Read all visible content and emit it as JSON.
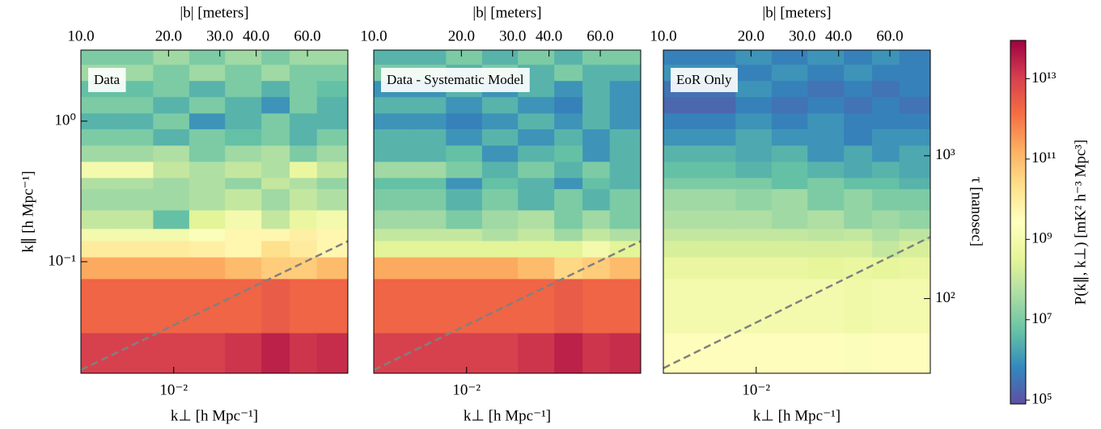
{
  "chart_data": [
    {
      "type": "heatmap",
      "annotation": "Data",
      "top_xlabel": "|b| [meters]",
      "xlabel": "k⊥ [h Mpc⁻¹]",
      "ylabel": "k∥ [h Mpc⁻¹]",
      "log_x": true,
      "log_y": true,
      "xlim": [
        0.0048,
        0.0396
      ],
      "ylim": [
        0.0161,
        3.2
      ],
      "xticks": [
        {
          "value": 0.01,
          "label": "10⁻²"
        }
      ],
      "yticks": [
        {
          "value": 1,
          "label": "10⁰"
        },
        {
          "value": 0.1,
          "label": "10⁻¹"
        }
      ],
      "top_xlim": [
        10,
        82.6
      ],
      "top_xticks": [
        {
          "value": 10,
          "label": "10.0"
        },
        {
          "value": 20,
          "label": "20.0"
        },
        {
          "value": 30,
          "label": "30.0"
        },
        {
          "value": 40,
          "label": "40.0"
        },
        {
          "value": 60,
          "label": "60.0"
        }
      ],
      "x_edges": [
        0.0048,
        0.0064,
        0.0085,
        0.0113,
        0.015,
        0.02,
        0.025,
        0.031,
        0.0396
      ],
      "y_edges": [
        0.0161,
        0.0312,
        0.0757,
        0.108,
        0.141,
        0.172,
        0.233,
        0.33,
        0.396,
        0.516,
        0.673,
        0.88,
        1.14,
        1.49,
        1.94,
        2.53,
        3.2
      ],
      "values": [
        [
          10000000000000.0,
          10000000000000.0,
          10000000000000.0,
          10000000000000.0,
          15000000000000.0,
          30000000000000.0,
          15000000000000.0,
          20000000000000.0
        ],
        [
          2000000000000.0,
          2000000000000.0,
          2000000000000.0,
          2000000000000.0,
          2000000000000.0,
          3000000000000.0,
          2000000000000.0,
          2000000000000.0
        ],
        [
          200000000000.0,
          200000000000.0,
          200000000000.0,
          200000000000.0,
          100000000000.0,
          50000000000.0,
          50000000000.0,
          100000000000.0
        ],
        [
          10000000000.0,
          10000000000.0,
          10000000000.0,
          8000000000.0,
          5000000000.0,
          20000000000.0,
          10000000000.0,
          5000000000.0
        ],
        [
          1000000000.0,
          1000000000.0,
          1000000000.0,
          2000000000.0,
          5000000000.0,
          5000000000.0,
          8000000000.0,
          5000000000.0
        ],
        [
          100000000.0,
          100000000.0,
          5000000.0,
          300000000.0,
          1000000000.0,
          100000000.0,
          500000000.0,
          1000000000.0
        ],
        [
          30000000.0,
          30000000.0,
          30000000.0,
          50000000.0,
          100000000.0,
          30000000.0,
          100000000.0,
          50000000.0
        ],
        [
          50000000.0,
          50000000.0,
          30000000.0,
          50000000.0,
          20000000.0,
          100000000.0,
          50000000.0,
          20000000.0
        ],
        [
          1000000000.0,
          1000000000.0,
          100000000.0,
          50000000.0,
          100000000.0,
          50000000.0,
          500000000.0,
          100000000.0
        ],
        [
          30000000.0,
          30000000.0,
          50000000.0,
          10000000.0,
          30000000.0,
          50000000.0,
          10000000.0,
          30000000.0
        ],
        [
          10000000.0,
          10000000.0,
          3000000.0,
          10000000.0,
          5000000.0,
          10000000.0,
          3000000.0,
          10000000.0
        ],
        [
          3000000.0,
          3000000.0,
          10000000.0,
          1000000.0,
          3000000.0,
          10000000.0,
          3000000.0,
          3000000.0
        ],
        [
          10000000.0,
          10000000.0,
          3000000.0,
          10000000.0,
          3000000.0,
          1000000.0,
          10000000.0,
          3000000.0
        ],
        [
          5000000.0,
          5000000.0,
          10000000.0,
          3000000.0,
          10000000.0,
          3000000.0,
          10000000.0,
          5000000.0
        ],
        [
          30000000.0,
          30000000.0,
          10000000.0,
          30000000.0,
          10000000.0,
          30000000.0,
          10000000.0,
          10000000.0
        ],
        [
          10000000.0,
          10000000.0,
          30000000.0,
          10000000.0,
          30000000.0,
          10000000.0,
          30000000.0,
          30000000.0
        ]
      ],
      "horizon": {
        "x": [
          0.0048,
          0.0396
        ],
        "y": [
          0.017,
          0.14
        ],
        "color": "#808080"
      }
    },
    {
      "type": "heatmap",
      "annotation": "Data - Systematic Model",
      "top_xlabel": "|b| [meters]",
      "xlabel": "k⊥ [h Mpc⁻¹]",
      "log_x": true,
      "log_y": true,
      "xlim": [
        0.0048,
        0.0396
      ],
      "ylim": [
        0.0161,
        3.2
      ],
      "xticks": [
        {
          "value": 0.01,
          "label": "10⁻²"
        }
      ],
      "top_xlim": [
        10,
        82.6
      ],
      "top_xticks": [
        {
          "value": 10,
          "label": "10.0"
        },
        {
          "value": 20,
          "label": "20.0"
        },
        {
          "value": 30,
          "label": "30.0"
        },
        {
          "value": 40,
          "label": "40.0"
        },
        {
          "value": 60,
          "label": "60.0"
        }
      ],
      "x_edges": [
        0.0048,
        0.0064,
        0.0085,
        0.0113,
        0.015,
        0.02,
        0.025,
        0.031,
        0.0396
      ],
      "y_edges": [
        0.0161,
        0.0312,
        0.0757,
        0.108,
        0.141,
        0.172,
        0.233,
        0.33,
        0.396,
        0.516,
        0.673,
        0.88,
        1.14,
        1.49,
        1.94,
        2.53,
        3.2
      ],
      "values": [
        [
          10000000000000.0,
          10000000000000.0,
          10000000000000.0,
          10000000000000.0,
          15000000000000.0,
          30000000000000.0,
          15000000000000.0,
          20000000000000.0
        ],
        [
          2000000000000.0,
          2000000000000.0,
          2000000000000.0,
          2000000000000.0,
          2000000000000.0,
          3000000000000.0,
          2000000000000.0,
          2000000000000.0
        ],
        [
          200000000000.0,
          200000000000.0,
          200000000000.0,
          200000000000.0,
          100000000000.0,
          30000000000.0,
          50000000000.0,
          100000000000.0
        ],
        [
          300000000.0,
          300000000.0,
          300000000.0,
          300000000.0,
          300000000.0,
          300000000.0,
          1000000000.0,
          300000000.0
        ],
        [
          100000000.0,
          100000000.0,
          100000000.0,
          50000000.0,
          100000000.0,
          30000000.0,
          100000000.0,
          50000000.0
        ],
        [
          30000000.0,
          30000000.0,
          10000000.0,
          30000000.0,
          50000000.0,
          10000000.0,
          30000000.0,
          10000000.0
        ],
        [
          10000000.0,
          10000000.0,
          3000000.0,
          10000000.0,
          3000000.0,
          10000000.0,
          3000000.0,
          10000000.0
        ],
        [
          5000000.0,
          5000000.0,
          1000000.0,
          5000000.0,
          3000000.0,
          1000000.0,
          5000000.0,
          3000000.0
        ],
        [
          30000000.0,
          30000000.0,
          10000000.0,
          3000000.0,
          10000000.0,
          3000000.0,
          10000000.0,
          3000000.0
        ],
        [
          3000000.0,
          3000000.0,
          5000000.0,
          1000000.0,
          3000000.0,
          5000000.0,
          1000000.0,
          3000000.0
        ],
        [
          3000000.0,
          3000000.0,
          1000000.0,
          3000000.0,
          1000000.0,
          3000000.0,
          1000000.0,
          3000000.0
        ],
        [
          1000000.0,
          1000000.0,
          500000.0,
          1000000.0,
          3000000.0,
          1000000.0,
          3000000.0,
          1000000.0
        ],
        [
          3000000.0,
          3000000.0,
          1000000.0,
          3000000.0,
          1000000.0,
          500000.0,
          3000000.0,
          1000000.0
        ],
        [
          1000000.0,
          1000000.0,
          3000000.0,
          1000000.0,
          3000000.0,
          1000000.0,
          3000000.0,
          1000000.0
        ],
        [
          10000000.0,
          10000000.0,
          3000000.0,
          10000000.0,
          3000000.0,
          10000000.0,
          3000000.0,
          3000000.0
        ],
        [
          3000000.0,
          3000000.0,
          10000000.0,
          3000000.0,
          10000000.0,
          3000000.0,
          10000000.0,
          10000000.0
        ]
      ],
      "horizon": {
        "x": [
          0.0048,
          0.0396
        ],
        "y": [
          0.017,
          0.14
        ],
        "color": "#808080"
      }
    },
    {
      "type": "heatmap",
      "annotation": "EoR Only",
      "top_xlabel": "|b| [meters]",
      "xlabel": "k⊥ [h Mpc⁻¹]",
      "y2label": "τ [nanosec]",
      "log_x": true,
      "log_y": true,
      "xlim": [
        0.0048,
        0.0396
      ],
      "ylim": [
        0.0161,
        3.2
      ],
      "xticks": [
        {
          "value": 0.01,
          "label": "10⁻²"
        }
      ],
      "top_xlim": [
        10,
        82.6
      ],
      "top_xticks": [
        {
          "value": 10,
          "label": "10.0"
        },
        {
          "value": 20,
          "label": "20.0"
        },
        {
          "value": 30,
          "label": "30.0"
        },
        {
          "value": 40,
          "label": "40.0"
        },
        {
          "value": 60,
          "label": "60.0"
        }
      ],
      "y2lim": [
        30,
        5500
      ],
      "y2ticks": [
        {
          "value": 1000,
          "label": "10³"
        },
        {
          "value": 100,
          "label": "10²"
        }
      ],
      "x_edges": [
        0.0048,
        0.0064,
        0.0085,
        0.0113,
        0.015,
        0.02,
        0.025,
        0.031,
        0.0396
      ],
      "y_edges": [
        0.0161,
        0.0312,
        0.0757,
        0.108,
        0.141,
        0.172,
        0.233,
        0.33,
        0.396,
        0.516,
        0.673,
        0.88,
        1.14,
        1.49,
        1.94,
        2.53,
        3.2
      ],
      "values": [
        [
          3000000000.0,
          3000000000.0,
          3000000000.0,
          3000000000.0,
          3000000000.0,
          2000000000.0,
          3000000000.0,
          3000000000.0
        ],
        [
          1000000000.0,
          1000000000.0,
          1000000000.0,
          1000000000.0,
          1000000000.0,
          800000000.0,
          1000000000.0,
          1000000000.0
        ],
        [
          500000000.0,
          500000000.0,
          500000000.0,
          500000000.0,
          400000000.0,
          500000000.0,
          400000000.0,
          500000000.0
        ],
        [
          200000000.0,
          200000000.0,
          200000000.0,
          200000000.0,
          200000000.0,
          200000000.0,
          100000000.0,
          200000000.0
        ],
        [
          100000000.0,
          100000000.0,
          100000000.0,
          100000000.0,
          80000000.0,
          100000000.0,
          50000000.0,
          80000000.0
        ],
        [
          50000000.0,
          50000000.0,
          50000000.0,
          30000000.0,
          50000000.0,
          20000000.0,
          30000000.0,
          20000000.0
        ],
        [
          30000000.0,
          30000000.0,
          20000000.0,
          30000000.0,
          10000000.0,
          20000000.0,
          10000000.0,
          10000000.0
        ],
        [
          10000000.0,
          10000000.0,
          10000000.0,
          5000000.0,
          10000000.0,
          5000000.0,
          5000000.0,
          3000000.0
        ],
        [
          5000000.0,
          5000000.0,
          3000000.0,
          5000000.0,
          3000000.0,
          2000000.0,
          3000000.0,
          2000000.0
        ],
        [
          3000000.0,
          3000000.0,
          2000000.0,
          3000000.0,
          1000000.0,
          2000000.0,
          1000000.0,
          2000000.0
        ],
        [
          1000000.0,
          1000000.0,
          2000000.0,
          1000000.0,
          1000000.0,
          500000.0,
          1000000.0,
          1000000.0
        ],
        [
          500000.0,
          500000.0,
          1000000.0,
          500000.0,
          1000000.0,
          500000.0,
          500000.0,
          500000.0
        ],
        [
          200000.0,
          200000.0,
          500000.0,
          300000.0,
          500000.0,
          300000.0,
          500000.0,
          300000.0
        ],
        [
          300000.0,
          300000.0,
          1000000.0,
          500000.0,
          300000.0,
          500000.0,
          300000.0,
          500000.0
        ],
        [
          1000000.0,
          1000000.0,
          500000.0,
          1000000.0,
          500000.0,
          1000000.0,
          500000.0,
          500000.0
        ],
        [
          500000.0,
          500000.0,
          1000000.0,
          500000.0,
          1000000.0,
          500000.0,
          1000000.0,
          500000.0
        ]
      ],
      "horizon": {
        "x": [
          0.0048,
          0.0396
        ],
        "y": [
          0.0175,
          0.15
        ],
        "color": "#808080"
      }
    },
    {
      "type": "colorbar",
      "label": "P(k∥, k⊥) [mK² h⁻³ Mpc³]",
      "log": true,
      "lim": [
        80000.0,
        90000000000000.0
      ],
      "ticks": [
        {
          "value": 100000.0,
          "label": "10⁵"
        },
        {
          "value": 10000000.0,
          "label": "10⁷"
        },
        {
          "value": 1000000000.0,
          "label": "10⁹"
        },
        {
          "value": 100000000000.0,
          "label": "10¹¹"
        },
        {
          "value": 10000000000000.0,
          "label": "10¹³"
        }
      ],
      "colors": [
        "#5e4fa2",
        "#3288bd",
        "#66c2a5",
        "#abdda4",
        "#e6f598",
        "#ffffbf",
        "#fee08b",
        "#fdae61",
        "#f46d43",
        "#d53e4f",
        "#9e0142"
      ]
    }
  ]
}
